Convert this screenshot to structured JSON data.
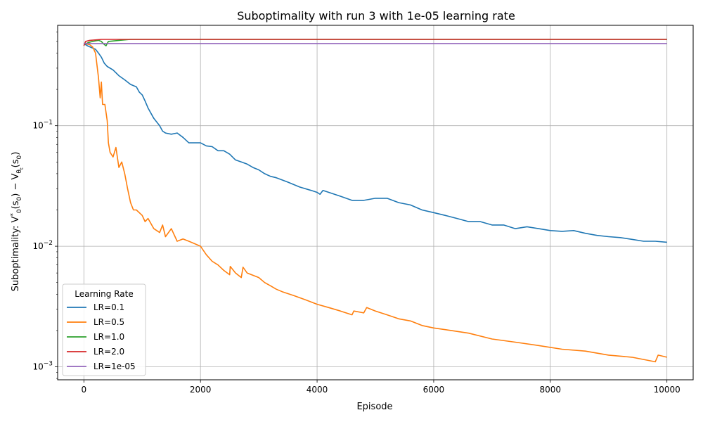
{
  "chart_data": {
    "type": "line",
    "title": "Suboptimality with run 3 with 1e-05 learning rate",
    "xlabel": "Episode",
    "ylabel_parts": [
      "Suboptimality: V",
      "*",
      "0",
      "(s",
      "0",
      ") − V",
      "θ",
      "t",
      "(s",
      "0",
      ")"
    ],
    "xlim": [
      -450,
      10450
    ],
    "ylim": [
      0.00078,
      0.68
    ],
    "yscale": "log",
    "grid": true,
    "legend_location": "lower-left",
    "legend_title": "Learning Rate",
    "x_ticks": [
      0,
      2000,
      4000,
      6000,
      8000,
      10000
    ],
    "x_tick_labels": [
      "0",
      "2000",
      "4000",
      "6000",
      "8000",
      "10000"
    ],
    "y_ticks": [
      0.1,
      0.01,
      0.001
    ],
    "y_tick_labels": [
      {
        "base": "10",
        "exp": "−1"
      },
      {
        "base": "10",
        "exp": "−2"
      },
      {
        "base": "10",
        "exp": "−3"
      }
    ],
    "series": [
      {
        "name": "LR=0.1",
        "color": "#1f77b4",
        "points": [
          [
            0,
            0.48
          ],
          [
            60,
            0.46
          ],
          [
            150,
            0.44
          ],
          [
            200,
            0.43
          ],
          [
            250,
            0.4
          ],
          [
            300,
            0.37
          ],
          [
            350,
            0.33
          ],
          [
            400,
            0.31
          ],
          [
            500,
            0.29
          ],
          [
            600,
            0.26
          ],
          [
            700,
            0.24
          ],
          [
            800,
            0.22
          ],
          [
            900,
            0.21
          ],
          [
            950,
            0.19
          ],
          [
            1000,
            0.18
          ],
          [
            1050,
            0.16
          ],
          [
            1100,
            0.14
          ],
          [
            1200,
            0.115
          ],
          [
            1300,
            0.1
          ],
          [
            1350,
            0.09
          ],
          [
            1400,
            0.087
          ],
          [
            1500,
            0.085
          ],
          [
            1600,
            0.087
          ],
          [
            1700,
            0.08
          ],
          [
            1800,
            0.072
          ],
          [
            1900,
            0.072
          ],
          [
            2000,
            0.072
          ],
          [
            2100,
            0.068
          ],
          [
            2200,
            0.067
          ],
          [
            2300,
            0.062
          ],
          [
            2400,
            0.062
          ],
          [
            2500,
            0.058
          ],
          [
            2600,
            0.052
          ],
          [
            2700,
            0.05
          ],
          [
            2800,
            0.048
          ],
          [
            2900,
            0.045
          ],
          [
            3000,
            0.043
          ],
          [
            3100,
            0.04
          ],
          [
            3200,
            0.038
          ],
          [
            3300,
            0.037
          ],
          [
            3500,
            0.034
          ],
          [
            3700,
            0.031
          ],
          [
            3900,
            0.029
          ],
          [
            4000,
            0.028
          ],
          [
            4050,
            0.027
          ],
          [
            4100,
            0.029
          ],
          [
            4200,
            0.028
          ],
          [
            4400,
            0.026
          ],
          [
            4600,
            0.024
          ],
          [
            4800,
            0.024
          ],
          [
            5000,
            0.025
          ],
          [
            5200,
            0.025
          ],
          [
            5400,
            0.023
          ],
          [
            5600,
            0.022
          ],
          [
            5800,
            0.02
          ],
          [
            6000,
            0.019
          ],
          [
            6200,
            0.018
          ],
          [
            6400,
            0.017
          ],
          [
            6600,
            0.016
          ],
          [
            6800,
            0.016
          ],
          [
            7000,
            0.015
          ],
          [
            7200,
            0.015
          ],
          [
            7400,
            0.014
          ],
          [
            7600,
            0.0145
          ],
          [
            7800,
            0.014
          ],
          [
            8000,
            0.0135
          ],
          [
            8200,
            0.0133
          ],
          [
            8400,
            0.0135
          ],
          [
            8600,
            0.0128
          ],
          [
            8800,
            0.0123
          ],
          [
            9000,
            0.012
          ],
          [
            9200,
            0.0118
          ],
          [
            9400,
            0.0114
          ],
          [
            9600,
            0.011
          ],
          [
            9800,
            0.011
          ],
          [
            10000,
            0.0108
          ]
        ]
      },
      {
        "name": "LR=0.5",
        "color": "#ff7f0e",
        "points": [
          [
            0,
            0.48
          ],
          [
            100,
            0.47
          ],
          [
            150,
            0.45
          ],
          [
            200,
            0.4
          ],
          [
            250,
            0.25
          ],
          [
            280,
            0.17
          ],
          [
            300,
            0.23
          ],
          [
            320,
            0.15
          ],
          [
            360,
            0.15
          ],
          [
            400,
            0.11
          ],
          [
            420,
            0.072
          ],
          [
            450,
            0.06
          ],
          [
            500,
            0.055
          ],
          [
            550,
            0.066
          ],
          [
            600,
            0.045
          ],
          [
            650,
            0.05
          ],
          [
            700,
            0.04
          ],
          [
            750,
            0.03
          ],
          [
            800,
            0.023
          ],
          [
            850,
            0.02
          ],
          [
            900,
            0.02
          ],
          [
            1000,
            0.018
          ],
          [
            1050,
            0.016
          ],
          [
            1100,
            0.017
          ],
          [
            1200,
            0.014
          ],
          [
            1300,
            0.013
          ],
          [
            1350,
            0.015
          ],
          [
            1400,
            0.012
          ],
          [
            1500,
            0.014
          ],
          [
            1600,
            0.011
          ],
          [
            1700,
            0.0115
          ],
          [
            1800,
            0.011
          ],
          [
            1900,
            0.0105
          ],
          [
            2000,
            0.01
          ],
          [
            2100,
            0.0085
          ],
          [
            2200,
            0.0075
          ],
          [
            2300,
            0.007
          ],
          [
            2400,
            0.0063
          ],
          [
            2500,
            0.0058
          ],
          [
            2510,
            0.0068
          ],
          [
            2600,
            0.006
          ],
          [
            2700,
            0.0055
          ],
          [
            2730,
            0.0067
          ],
          [
            2800,
            0.006
          ],
          [
            3000,
            0.0055
          ],
          [
            3100,
            0.005
          ],
          [
            3200,
            0.0047
          ],
          [
            3300,
            0.0044
          ],
          [
            3400,
            0.0042
          ],
          [
            3600,
            0.0039
          ],
          [
            3800,
            0.0036
          ],
          [
            4000,
            0.0033
          ],
          [
            4200,
            0.0031
          ],
          [
            4400,
            0.0029
          ],
          [
            4600,
            0.0027
          ],
          [
            4630,
            0.0029
          ],
          [
            4800,
            0.0028
          ],
          [
            4850,
            0.0031
          ],
          [
            5000,
            0.0029
          ],
          [
            5200,
            0.0027
          ],
          [
            5400,
            0.0025
          ],
          [
            5600,
            0.0024
          ],
          [
            5800,
            0.0022
          ],
          [
            6000,
            0.0021
          ],
          [
            6300,
            0.002
          ],
          [
            6600,
            0.0019
          ],
          [
            7000,
            0.0017
          ],
          [
            7400,
            0.0016
          ],
          [
            7800,
            0.0015
          ],
          [
            8200,
            0.0014
          ],
          [
            8600,
            0.00135
          ],
          [
            9000,
            0.00125
          ],
          [
            9400,
            0.0012
          ],
          [
            9800,
            0.0011
          ],
          [
            9850,
            0.00125
          ],
          [
            10000,
            0.0012
          ]
        ]
      },
      {
        "name": "LR=1.0",
        "color": "#2ca02c",
        "points": [
          [
            0,
            0.47
          ],
          [
            80,
            0.49
          ],
          [
            150,
            0.5
          ],
          [
            250,
            0.51
          ],
          [
            300,
            0.5
          ],
          [
            330,
            0.48
          ],
          [
            380,
            0.46
          ],
          [
            420,
            0.5
          ],
          [
            600,
            0.51
          ],
          [
            800,
            0.52
          ],
          [
            1000,
            0.52
          ],
          [
            2000,
            0.52
          ],
          [
            10000,
            0.52
          ]
        ]
      },
      {
        "name": "LR=2.0",
        "color": "#d62728",
        "points": [
          [
            0,
            0.46
          ],
          [
            30,
            0.5
          ],
          [
            100,
            0.51
          ],
          [
            300,
            0.52
          ],
          [
            1000,
            0.52
          ],
          [
            10000,
            0.52
          ]
        ]
      },
      {
        "name": "LR=1e-05",
        "color": "#9467bd",
        "points": [
          [
            0,
            0.48
          ],
          [
            10000,
            0.48
          ]
        ]
      }
    ]
  }
}
